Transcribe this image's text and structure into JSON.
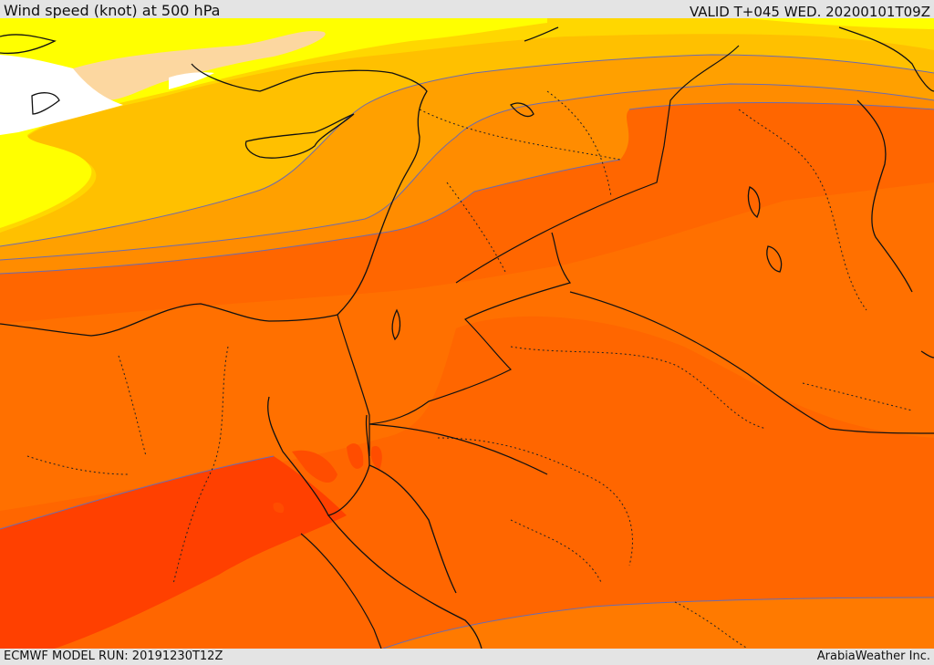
{
  "header": {
    "title": "Wind speed (knot) at 500 hPa",
    "valid": "VALID T+045 WED. 20200101T09Z"
  },
  "footer": {
    "model_run": "ECMWF MODEL RUN: 20191230T12Z",
    "provider": "ArabiaWeather Inc."
  },
  "legend_colors": {
    "white": "#ffffff",
    "tan": "#fcd7a0",
    "yellow": "#ffff00",
    "yellow_orange": "#ffd700",
    "light_orange": "#ffc000",
    "orange": "#ffa000",
    "dark_orange": "#ff8c00",
    "red_orange": "#ff6600",
    "deep_red_orange": "#ff4000",
    "south_band": "#ff7a00"
  }
}
